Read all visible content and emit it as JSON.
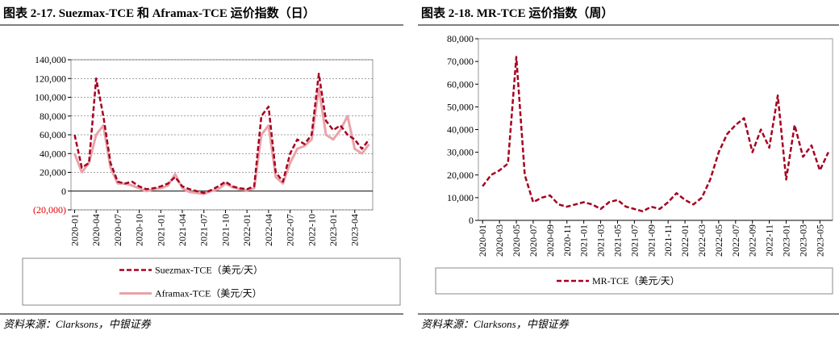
{
  "chart_data": [
    {
      "type": "line",
      "title": "图表 2-17. Suezmax-TCE 和 Aframax-TCE 运价指数（日）",
      "source": "资料来源：Clarksons，中银证券",
      "categories": [
        "2020-01",
        null,
        null,
        "2020-04",
        null,
        null,
        "2020-07",
        null,
        null,
        "2020-10",
        null,
        null,
        "2021-01",
        null,
        null,
        "2021-04",
        null,
        null,
        "2021-07",
        null,
        null,
        "2021-10",
        null,
        null,
        "2022-01",
        null,
        null,
        "2022-04",
        null,
        null,
        "2022-07",
        null,
        null,
        "2022-10",
        null,
        null,
        "2023-01",
        null,
        null,
        "2023-04",
        null,
        null
      ],
      "series": [
        {
          "name": "Suezmax-TCE（美元/天）",
          "color": "#a50021",
          "line_style": "dashed",
          "values": [
            60000,
            25000,
            30000,
            120000,
            80000,
            30000,
            10000,
            8000,
            10000,
            5000,
            2000,
            3000,
            5000,
            8000,
            15000,
            5000,
            2000,
            0,
            -2000,
            1000,
            5000,
            10000,
            5000,
            3000,
            2000,
            5000,
            80000,
            90000,
            20000,
            10000,
            40000,
            55000,
            50000,
            60000,
            125000,
            75000,
            65000,
            70000,
            60000,
            55000,
            45000,
            55000
          ]
        },
        {
          "name": "Aframax-TCE（美元/天）",
          "color": "#eaa3a8",
          "line_style": "solid",
          "values": [
            40000,
            20000,
            30000,
            60000,
            70000,
            25000,
            8000,
            8000,
            6000,
            3000,
            0,
            2000,
            3000,
            6000,
            18000,
            3000,
            -1000,
            -2000,
            -3000,
            0,
            2000,
            8000,
            4000,
            2000,
            1000,
            3000,
            60000,
            70000,
            15000,
            8000,
            30000,
            45000,
            48000,
            55000,
            110000,
            60000,
            55000,
            65000,
            80000,
            45000,
            40000,
            50000
          ]
        }
      ],
      "ylim": [
        -20000,
        140000
      ],
      "yticks": [
        {
          "value": -20000,
          "label": "(20,000)"
        },
        0,
        {
          "value": 20000,
          "label": "20,000"
        },
        {
          "value": 40000,
          "label": "40,000"
        },
        {
          "value": 60000,
          "label": "60,000"
        },
        {
          "value": 80000,
          "label": "80,000"
        },
        {
          "value": 100000,
          "label": "100,000"
        },
        {
          "value": 120000,
          "label": "120,000"
        },
        {
          "value": 140000,
          "label": "140,000"
        }
      ],
      "grid": true
    },
    {
      "type": "line",
      "title": "图表 2-18. MR-TCE 运价指数（周）",
      "source": "资料来源：Clarksons，中银证券",
      "categories": [
        "2020-01",
        null,
        "2020-03",
        null,
        "2020-05",
        null,
        "2020-07",
        null,
        "2020-09",
        null,
        "2020-11",
        null,
        "2021-01",
        null,
        "2021-03",
        null,
        "2021-05",
        null,
        "2021-07",
        null,
        "2021-09",
        null,
        "2021-11",
        null,
        "2022-01",
        null,
        "2022-03",
        null,
        "2022-05",
        null,
        "2022-07",
        null,
        "2022-09",
        null,
        "2022-11",
        null,
        "2023-01",
        null,
        "2023-03",
        null,
        "2023-05",
        null
      ],
      "series": [
        {
          "name": "MR-TCE（美元/天）",
          "color": "#a50021",
          "line_style": "dashed",
          "values": [
            15000,
            20000,
            22000,
            25000,
            72000,
            20000,
            8000,
            10000,
            11000,
            7000,
            6000,
            7000,
            8000,
            7000,
            5000,
            8000,
            9000,
            6000,
            5000,
            4000,
            6000,
            5000,
            8000,
            12000,
            9000,
            7000,
            10000,
            18000,
            30000,
            38000,
            42000,
            45000,
            30000,
            40000,
            32000,
            55000,
            18000,
            42000,
            28000,
            33000,
            22000,
            30000
          ]
        }
      ],
      "ylim": [
        0,
        80000
      ],
      "yticks": [
        0,
        {
          "value": 10000,
          "label": "10,000"
        },
        {
          "value": 20000,
          "label": "20,000"
        },
        {
          "value": 30000,
          "label": "30,000"
        },
        {
          "value": 40000,
          "label": "40,000"
        },
        {
          "value": 50000,
          "label": "50,000"
        },
        {
          "value": 60000,
          "label": "60,000"
        },
        {
          "value": 70000,
          "label": "70,000"
        },
        {
          "value": 80000,
          "label": "80,000"
        }
      ],
      "grid": false
    }
  ]
}
